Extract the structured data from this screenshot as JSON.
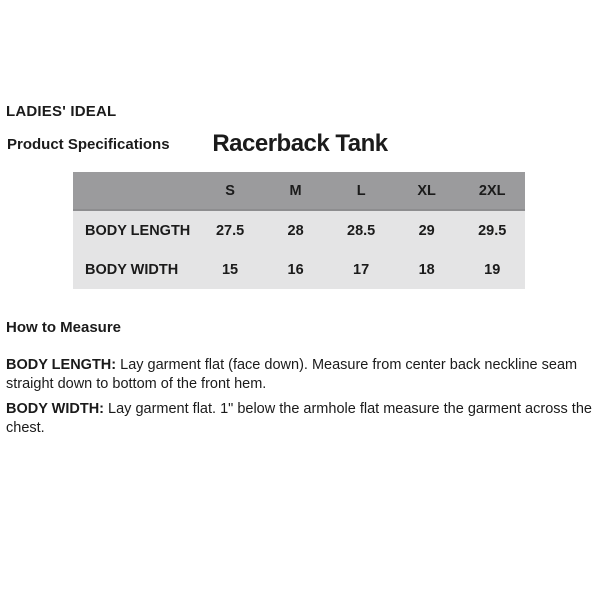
{
  "brand": "LADIES' IDEAL",
  "section_label": "Product Specifications",
  "product_title": "Racerback Tank",
  "spec_table": {
    "columns": [
      "S",
      "M",
      "L",
      "XL",
      "2XL"
    ],
    "rows": [
      {
        "label": "BODY LENGTH",
        "values": [
          "27.5",
          "28",
          "28.5",
          "29",
          "29.5"
        ]
      },
      {
        "label": "BODY WIDTH",
        "values": [
          "15",
          "16",
          "17",
          "18",
          "19"
        ]
      }
    ]
  },
  "how_to_measure": {
    "heading": "How to Measure",
    "instructions": [
      {
        "term": "BODY LENGTH:",
        "text": "Lay garment flat (face down). Measure from center back neckline seam straight down to bottom of the front hem."
      },
      {
        "term": "BODY WIDTH:",
        "text": "Lay garment flat. 1\" below the armhole flat measure the garment across the chest."
      }
    ]
  },
  "colors": {
    "page_bg": "#ffffff",
    "table_header_bg": "#9b9b9d",
    "table_row_bg": "#e4e4e5",
    "text": "#1b1b1b"
  }
}
